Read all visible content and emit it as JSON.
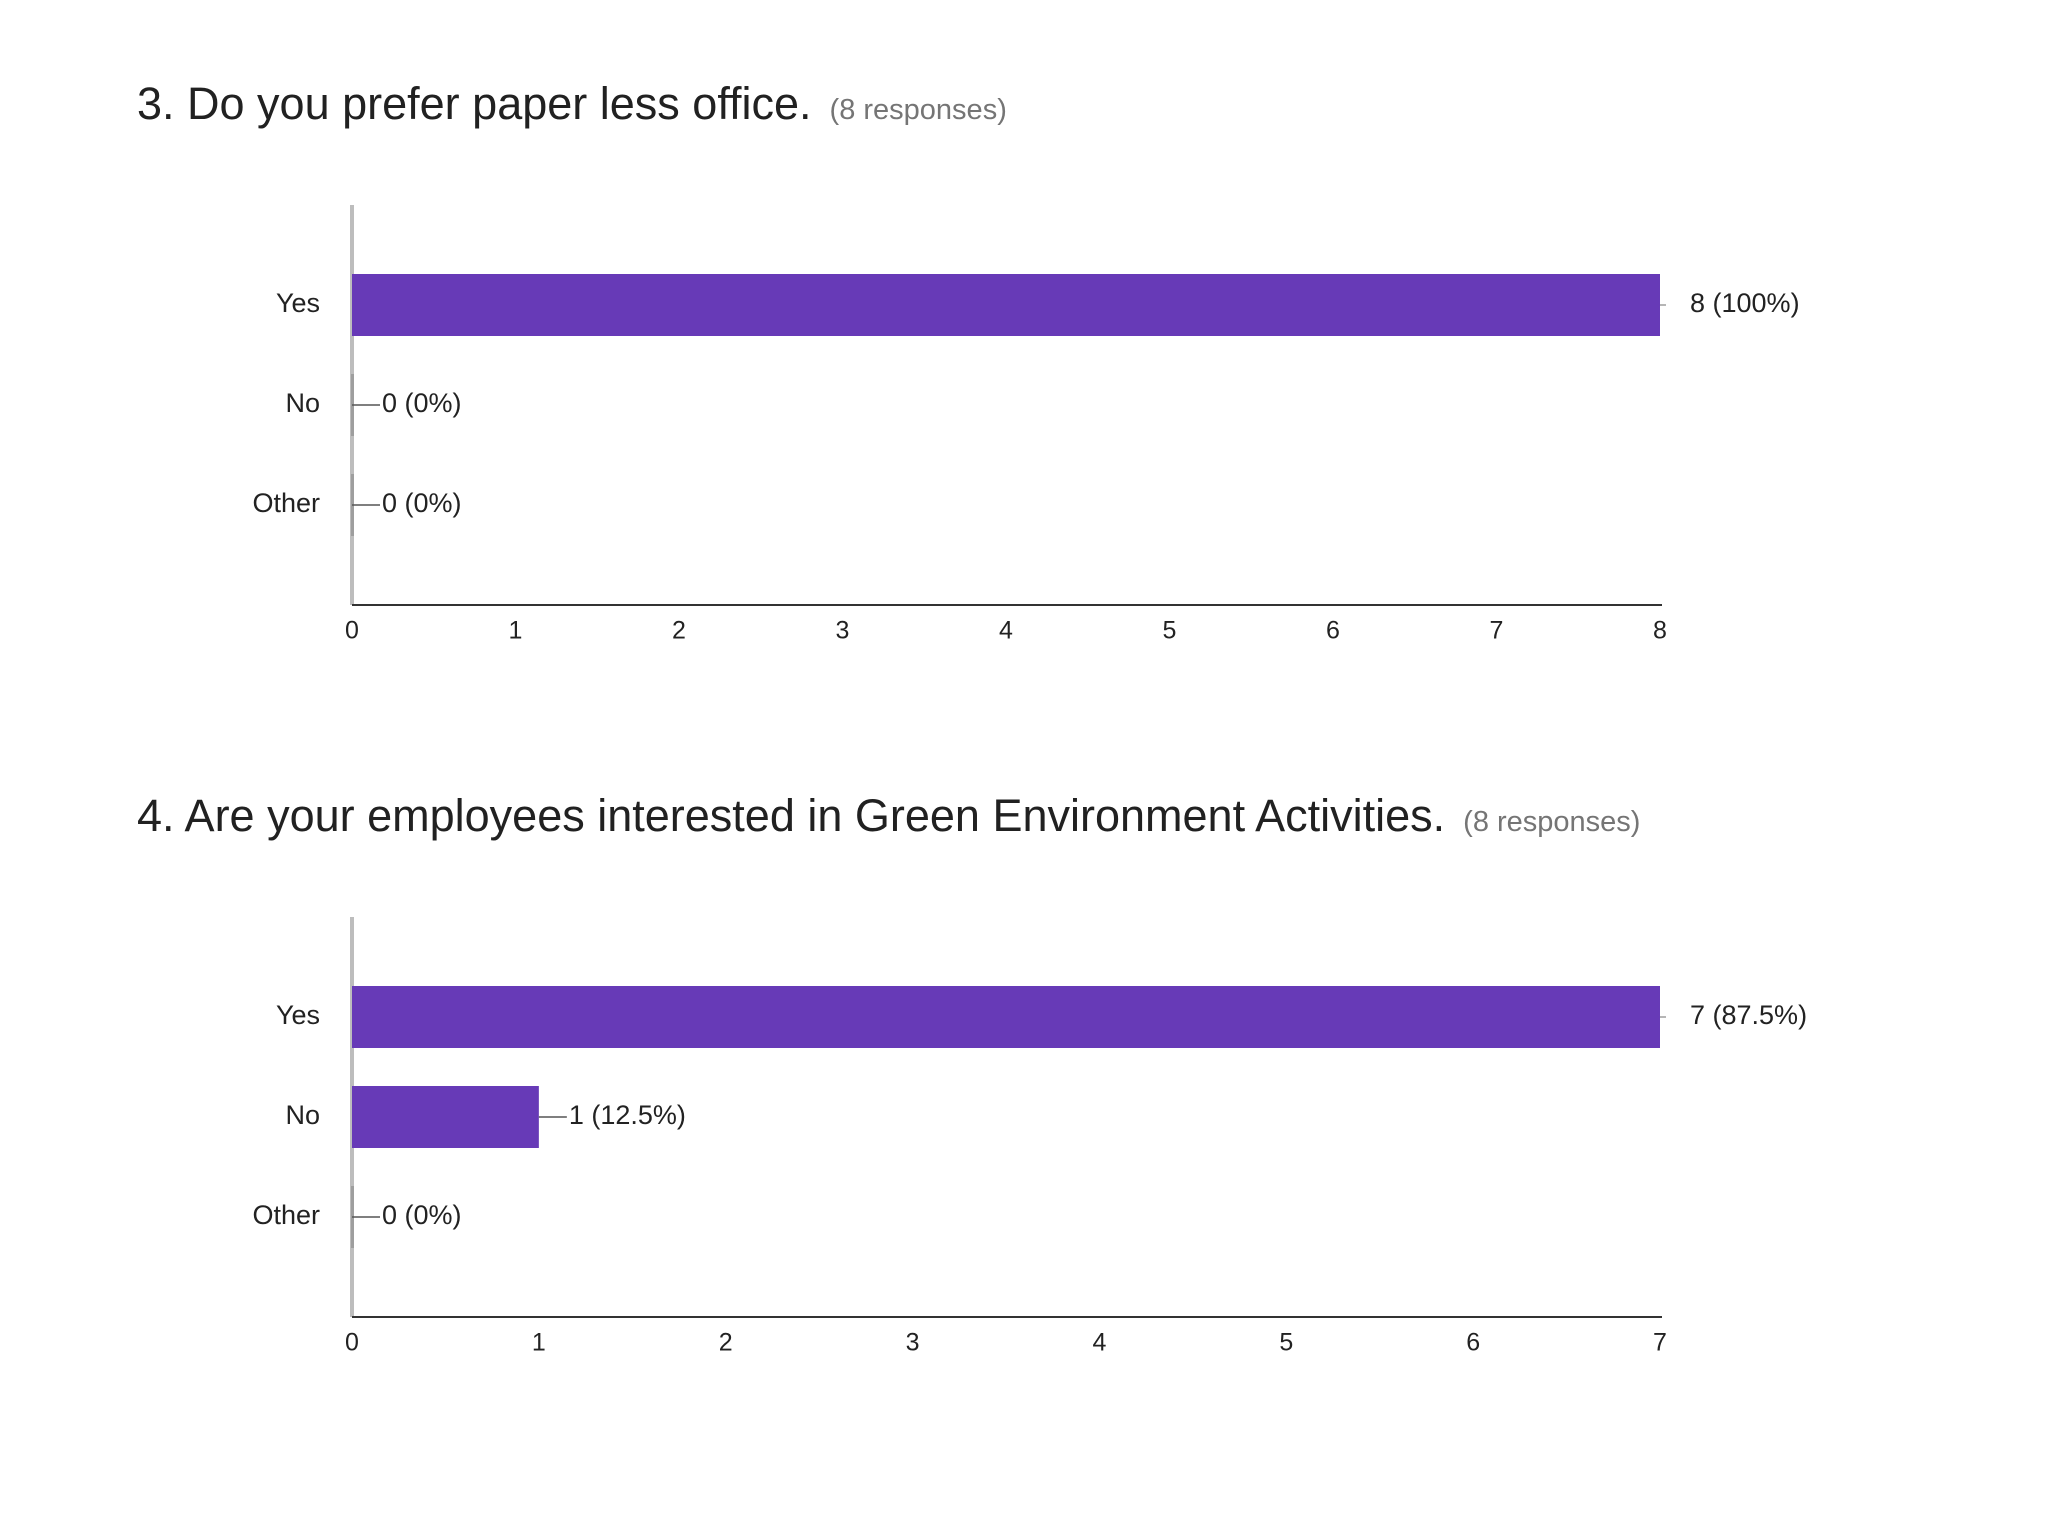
{
  "questions": [
    {
      "title": "3. Do you prefer paper less office.",
      "responses": "(8 responses)"
    },
    {
      "title": "4. Are your employees interested in Green Environment Activities.",
      "responses": "(8 responses)"
    }
  ],
  "bar_color": "#673ab7",
  "chart_data": [
    {
      "type": "bar",
      "orientation": "horizontal",
      "title": "3. Do you prefer paper less office.",
      "categories": [
        "Yes",
        "No",
        "Other"
      ],
      "values": [
        8,
        0,
        0
      ],
      "labels": [
        "8 (100%)",
        "0 (0%)",
        "0 (0%)"
      ],
      "xlim": [
        0,
        8
      ],
      "xticks": [
        "0",
        "1",
        "2",
        "3",
        "4",
        "5",
        "6",
        "7",
        "8"
      ],
      "xlabel": "",
      "ylabel": "",
      "grid": false
    },
    {
      "type": "bar",
      "orientation": "horizontal",
      "title": "4. Are your employees interested in Green Environment Activities.",
      "categories": [
        "Yes",
        "No",
        "Other"
      ],
      "values": [
        7,
        1,
        0
      ],
      "labels": [
        "7 (87.5%)",
        "1 (12.5%)",
        "0 (0%)"
      ],
      "xlim": [
        0,
        7
      ],
      "xticks": [
        "0",
        "1",
        "2",
        "3",
        "4",
        "5",
        "6",
        "7"
      ],
      "xlabel": "",
      "ylabel": "",
      "grid": false
    }
  ]
}
